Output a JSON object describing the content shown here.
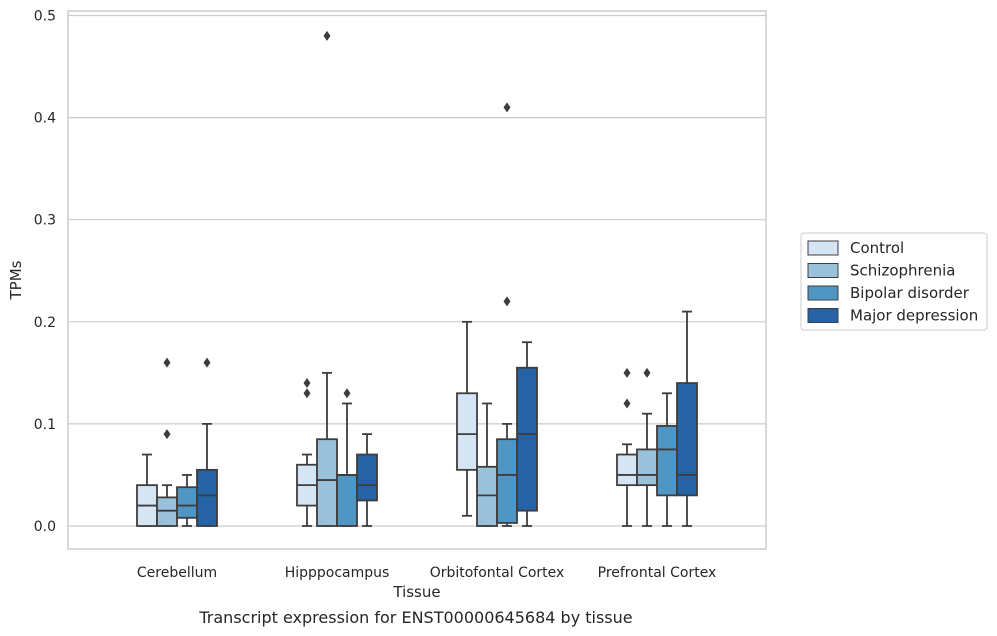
{
  "chart_data": {
    "type": "box",
    "title": "",
    "caption": "Transcript expression for ENST00000645684 by tissue",
    "xlabel": "Tissue",
    "ylabel": "TPMs",
    "ylim": [
      -0.023,
      0.505
    ],
    "yticks": [
      {
        "value": 0.0,
        "label": "0.0"
      },
      {
        "value": 0.1,
        "label": "0.1"
      },
      {
        "value": 0.2,
        "label": "0.2"
      },
      {
        "value": 0.3,
        "label": "0.3"
      },
      {
        "value": 0.4,
        "label": "0.4"
      },
      {
        "value": 0.5,
        "label": "0.5"
      }
    ],
    "grid": "horizontal",
    "legend_position": "right",
    "categories": [
      "Cerebellum",
      "Hipppocampus",
      "Orbitofontal Cortex",
      "Prefrontal Cortex"
    ],
    "series": [
      {
        "name": "Control",
        "color": "#d6e5f3",
        "boxes": [
          {
            "whisker_low": 0.0,
            "q1": 0.0,
            "median": 0.02,
            "q3": 0.04,
            "whisker_high": 0.07,
            "outliers": []
          },
          {
            "whisker_low": 0.0,
            "q1": 0.02,
            "median": 0.04,
            "q3": 0.06,
            "whisker_high": 0.07,
            "outliers": [
              0.13,
              0.14
            ]
          },
          {
            "whisker_low": 0.01,
            "q1": 0.055,
            "median": 0.09,
            "q3": 0.13,
            "whisker_high": 0.2,
            "outliers": []
          },
          {
            "whisker_low": 0.0,
            "q1": 0.04,
            "median": 0.05,
            "q3": 0.07,
            "whisker_high": 0.08,
            "outliers": [
              0.12,
              0.15
            ]
          }
        ]
      },
      {
        "name": "Schizophrenia",
        "color": "#9ac1dc",
        "boxes": [
          {
            "whisker_low": 0.0,
            "q1": 0.0,
            "median": 0.015,
            "q3": 0.028,
            "whisker_high": 0.04,
            "outliers": [
              0.09,
              0.16
            ]
          },
          {
            "whisker_low": 0.0,
            "q1": 0.0,
            "median": 0.045,
            "q3": 0.085,
            "whisker_high": 0.15,
            "outliers": [
              0.48
            ]
          },
          {
            "whisker_low": 0.0,
            "q1": 0.0,
            "median": 0.03,
            "q3": 0.058,
            "whisker_high": 0.12,
            "outliers": []
          },
          {
            "whisker_low": 0.0,
            "q1": 0.04,
            "median": 0.05,
            "q3": 0.075,
            "whisker_high": 0.11,
            "outliers": [
              0.15
            ]
          }
        ]
      },
      {
        "name": "Bipolar disorder",
        "color": "#5096c5",
        "boxes": [
          {
            "whisker_low": 0.0,
            "q1": 0.008,
            "median": 0.02,
            "q3": 0.038,
            "whisker_high": 0.05,
            "outliers": []
          },
          {
            "whisker_low": 0.0,
            "q1": 0.0,
            "median": 0.05,
            "q3": 0.05,
            "whisker_high": 0.12,
            "outliers": [
              0.13
            ]
          },
          {
            "whisker_low": 0.0,
            "q1": 0.003,
            "median": 0.05,
            "q3": 0.085,
            "whisker_high": 0.1,
            "outliers": [
              0.22,
              0.41
            ]
          },
          {
            "whisker_low": 0.0,
            "q1": 0.03,
            "median": 0.075,
            "q3": 0.098,
            "whisker_high": 0.13,
            "outliers": []
          }
        ]
      },
      {
        "name": "Major depression",
        "color": "#2563a6",
        "boxes": [
          {
            "whisker_low": 0.0,
            "q1": 0.0,
            "median": 0.03,
            "q3": 0.055,
            "whisker_high": 0.1,
            "outliers": [
              0.16
            ]
          },
          {
            "whisker_low": 0.0,
            "q1": 0.025,
            "median": 0.04,
            "q3": 0.07,
            "whisker_high": 0.09,
            "outliers": []
          },
          {
            "whisker_low": 0.0,
            "q1": 0.015,
            "median": 0.09,
            "q3": 0.155,
            "whisker_high": 0.18,
            "outliers": []
          },
          {
            "whisker_low": 0.0,
            "q1": 0.03,
            "median": 0.05,
            "q3": 0.14,
            "whisker_high": 0.21,
            "outliers": []
          }
        ]
      }
    ]
  }
}
